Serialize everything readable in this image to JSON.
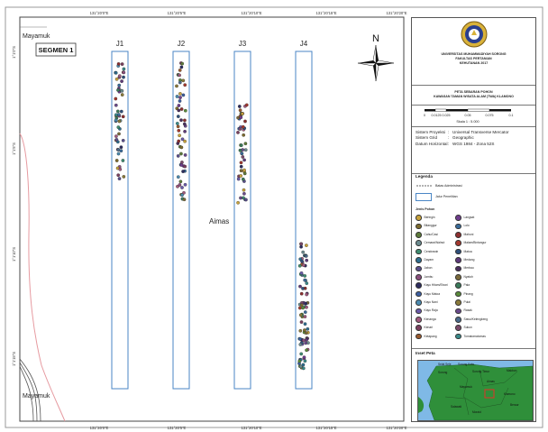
{
  "map": {
    "top_ticks": [
      "131°20'0\"E",
      "131°20'5\"E",
      "131°20'10\"E",
      "131°20'15\"E",
      "131°20'20\"E"
    ],
    "bottom_ticks": [
      "131°20'0\"E",
      "131°20'5\"E",
      "131°20'10\"E",
      "131°20'15\"E",
      "131°20'20\"E"
    ],
    "left_ticks": [
      "1°1'0\"S",
      "1°1'5\"S",
      "1°1'10\"S",
      "1°1'15\"S"
    ],
    "segment_label": "SEGMEN 1",
    "place_top": "Mayamuk",
    "place_bottom": "Mayamuk",
    "center_label": "Aimas",
    "north_label": "N",
    "transects": [
      {
        "label": "J1"
      },
      {
        "label": "J2"
      },
      {
        "label": "J3"
      },
      {
        "label": "J4"
      }
    ]
  },
  "sidebar": {
    "university": "UNIVERSITAS MUHAMMADIYAH SORONG",
    "faculty": "FAKULTAS PERTANIAN",
    "department": "KEHUTANAN 2017",
    "map_title_1": "PETA SEBARAN POHON",
    "map_title_2": "KAWASAN TAMAN WISATA ALAM (TWA) KLAMONO",
    "scale_ticks": [
      "0",
      "0.0125 0.025",
      "0.05",
      "0.075",
      "0.1"
    ],
    "scale_text": "Skala 1 : 5.000",
    "projection": [
      {
        "key": "Sistem Proyeksi",
        "sep": ":",
        "value": "Universal Transverse Mercator"
      },
      {
        "key": "Sistem Grid",
        "sep": ":",
        "value": "Geographic"
      },
      {
        "key": "Datum Horizontal",
        "sep": ":",
        "value": "WGS 1984 - Zona 52S"
      }
    ],
    "legend_title": "Legenda",
    "legend_road": "Batas Administrasi",
    "legend_transect": "Jalur Penelitian",
    "species_title": "Jenis Pohon",
    "species": [
      {
        "name": "Beringin",
        "color": "#c7a23c"
      },
      {
        "name": "Bitanggur",
        "color": "#7d6b2e"
      },
      {
        "name": "Cahu/Casi",
        "color": "#5d7a3a"
      },
      {
        "name": "Cemara/Walnut",
        "color": "#6b8b8f"
      },
      {
        "name": "Cendrawin",
        "color": "#3e8c6f"
      },
      {
        "name": "Dayam",
        "color": "#2f6e8f"
      },
      {
        "name": "Jabon",
        "color": "#5a4f8c"
      },
      {
        "name": "Jambu",
        "color": "#8a4f7d"
      },
      {
        "name": "Kayu Hitam/Eboni",
        "color": "#2c2c5e"
      },
      {
        "name": "Kayu Matoa",
        "color": "#3c5ea0"
      },
      {
        "name": "Kayu Nani",
        "color": "#4c8bb0"
      },
      {
        "name": "Kayu Raja",
        "color": "#6a5aa8"
      },
      {
        "name": "Kenanga",
        "color": "#a0597d"
      },
      {
        "name": "Kenari",
        "color": "#7a3f5e"
      },
      {
        "name": "Ketapang",
        "color": "#995a2e"
      },
      {
        "name": "Langsat",
        "color": "#6f3c8c"
      },
      {
        "name": "Lolo",
        "color": "#3a6c9a"
      },
      {
        "name": "Mahoni",
        "color": "#8c2f2f"
      },
      {
        "name": "Malam/Bintangur",
        "color": "#a3382e"
      },
      {
        "name": "Matoa",
        "color": "#2e4f7a"
      },
      {
        "name": "Medang",
        "color": "#5e3a7a"
      },
      {
        "name": "Merbau",
        "color": "#4a2f5e"
      },
      {
        "name": "Nyatoh",
        "color": "#7a6a3a"
      },
      {
        "name": "Pala",
        "color": "#3a7a5a"
      },
      {
        "name": "Pinang",
        "color": "#5a8a3a"
      },
      {
        "name": "Pulai",
        "color": "#8a7a3a"
      },
      {
        "name": "Rasak",
        "color": "#6a4a8a"
      },
      {
        "name": "Sawo/Kelengkeng",
        "color": "#4a6a8a"
      },
      {
        "name": "Sukun",
        "color": "#7a4a6a"
      },
      {
        "name": "Tomatomatomas",
        "color": "#3a8a8a"
      }
    ],
    "inset_title": "Inset Peta",
    "inset_labels": [
      "Selat Sele",
      "Sorong Kota",
      "Sorong",
      "Sorong Timur",
      "Makbon",
      "Mayamuk",
      "Aimas",
      "Klamono",
      "Salawati",
      "Moraid",
      "Beraur"
    ]
  }
}
